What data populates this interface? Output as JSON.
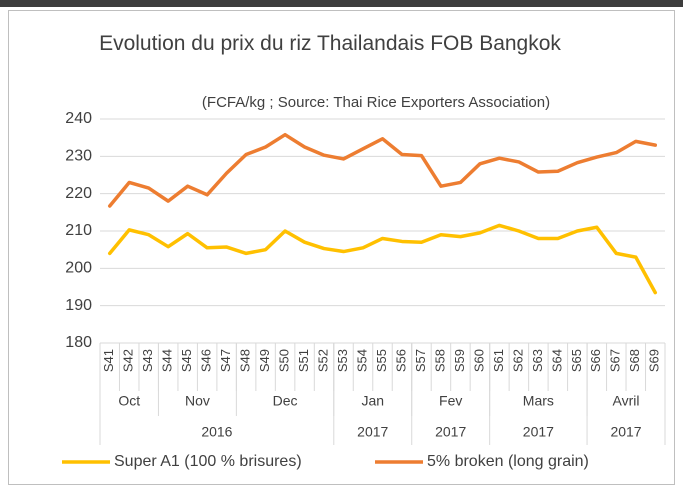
{
  "chart_data": {
    "type": "line",
    "title": "Evolution du prix du riz Thailandais FOB Bangkok",
    "subtitle": "(FCFA/kg ; Source: Thai Rice Exporters Association)",
    "categories": [
      "S41",
      "S42",
      "S43",
      "S44",
      "S45",
      "S46",
      "S47",
      "S48",
      "S49",
      "S50",
      "S51",
      "S52",
      "S53",
      "S54",
      "S55",
      "S56",
      "S57",
      "S58",
      "S59",
      "S60",
      "S61",
      "S62",
      "S63",
      "S64",
      "S65",
      "S66",
      "S67",
      "S68",
      "S69"
    ],
    "month_groups": [
      {
        "label": "Oct",
        "count": 3
      },
      {
        "label": "Nov",
        "count": 4
      },
      {
        "label": "Dec",
        "count": 5
      },
      {
        "label": "Jan",
        "count": 4
      },
      {
        "label": "Fev",
        "count": 4
      },
      {
        "label": "Mars",
        "count": 5
      },
      {
        "label": "Avril",
        "count": 4
      }
    ],
    "year_groups": [
      {
        "label": "2016",
        "count": 12
      },
      {
        "label": "2017",
        "count": 4
      },
      {
        "label": "2017",
        "count": 4
      },
      {
        "label": "2017",
        "count": 5
      },
      {
        "label": "2017",
        "count": 4
      }
    ],
    "series": [
      {
        "name": "Super A1 (100 % brisures)",
        "color": "#FFC000",
        "values": [
          204,
          210.3,
          209,
          205.8,
          209.3,
          205.5,
          205.7,
          204,
          205,
          210,
          207,
          205.3,
          204.5,
          205.5,
          208,
          207.2,
          207,
          209,
          208.5,
          209.5,
          211.5,
          210,
          208,
          208,
          210,
          211,
          204,
          203,
          193.5
        ]
      },
      {
        "name": "5% broken (long grain)",
        "color": "#ED7D31",
        "values": [
          216.7,
          223,
          221.5,
          218,
          222,
          219.7,
          225.5,
          230.5,
          232.5,
          235.8,
          232.5,
          230.3,
          229.3,
          232,
          234.7,
          230.5,
          230.2,
          222,
          223,
          228,
          229.5,
          228.5,
          225.8,
          226,
          228.3,
          229.8,
          231,
          234,
          233
        ]
      }
    ],
    "ylim": [
      180,
      240
    ],
    "yticks": [
      180,
      190,
      200,
      210,
      220,
      230,
      240
    ],
    "grid": true,
    "legend": "bottom"
  }
}
